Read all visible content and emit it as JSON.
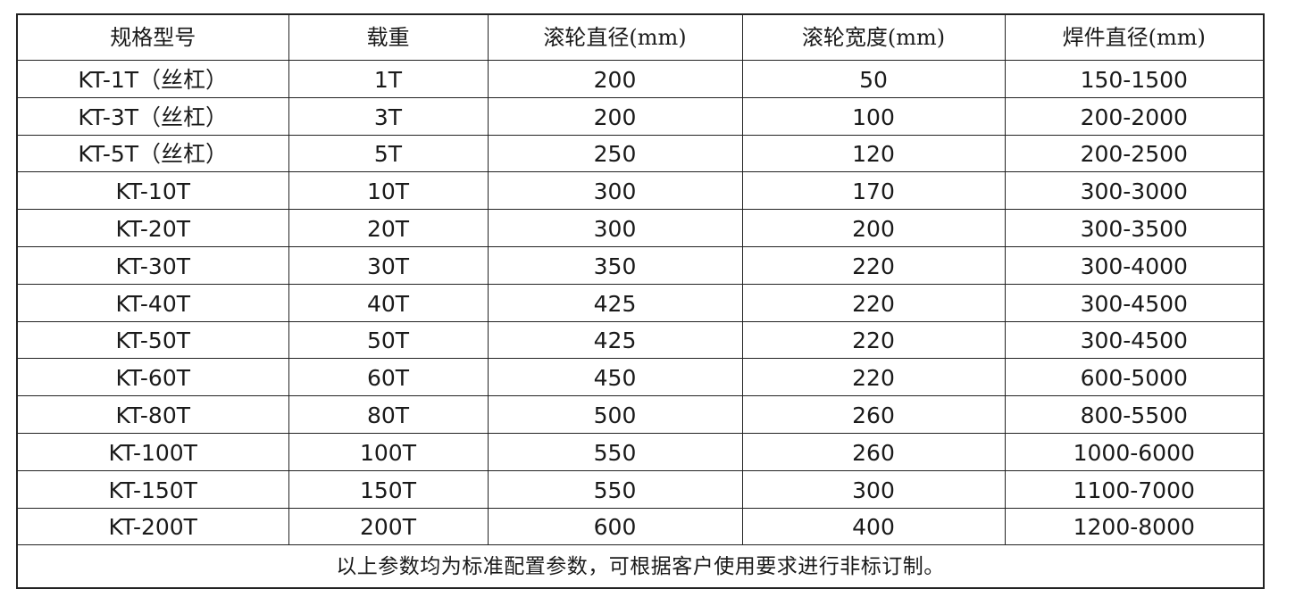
{
  "table": {
    "header": [
      "规格型号",
      "载重",
      "滚轮直径(mm)",
      "滚轮宽度(mm)",
      "焊件直径(mm)"
    ],
    "rows": [
      [
        "KT-1T（丝杠）",
        "1T",
        "200",
        "50",
        "150-1500"
      ],
      [
        "KT-3T（丝杠）",
        "3T",
        "200",
        "100",
        "200-2000"
      ],
      [
        "KT-5T（丝杠）",
        "5T",
        "250",
        "120",
        "200-2500"
      ],
      [
        "KT-10T",
        "10T",
        "300",
        "170",
        "300-3000"
      ],
      [
        "KT-20T",
        "20T",
        "300",
        "200",
        "300-3500"
      ],
      [
        "KT-30T",
        "30T",
        "350",
        "220",
        "300-4000"
      ],
      [
        "KT-40T",
        "40T",
        "425",
        "220",
        "300-4500"
      ],
      [
        "KT-50T",
        "50T",
        "425",
        "220",
        "300-4500"
      ],
      [
        "KT-60T",
        "60T",
        "450",
        "220",
        "600-5000"
      ],
      [
        "KT-80T",
        "80T",
        "500",
        "260",
        "800-5500"
      ],
      [
        "KT-100T",
        "100T",
        "550",
        "260",
        "1000-6000"
      ],
      [
        "KT-150T",
        "150T",
        "550",
        "300",
        "1100-7000"
      ],
      [
        "KT-200T",
        "200T",
        "600",
        "400",
        "1200-8000"
      ]
    ],
    "footer": "以上参数均为标准配置参数，可根据客户使用要求进行非标订制。"
  }
}
